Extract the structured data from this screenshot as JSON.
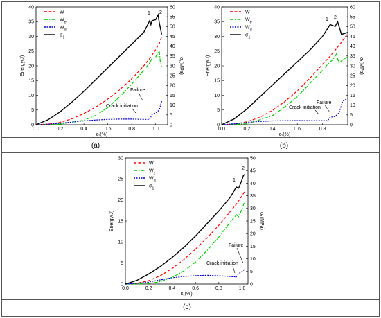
{
  "chart_data": [
    {
      "type": "line",
      "panel_label": "(a)",
      "xlabel": "ε₁(%)",
      "ylabel_left": "Energy(J)",
      "ylabel_right": "σ₁(MPa)",
      "xlim": [
        0,
        1.1
      ],
      "ylim_left": [
        0,
        40
      ],
      "ylim_right": [
        0,
        60
      ],
      "xticks": [
        "0.0",
        "0.2",
        "0.4",
        "0.6",
        "0.8",
        "1.0"
      ],
      "yticks_left": [
        "0",
        "5",
        "10",
        "15",
        "20",
        "25",
        "30",
        "35",
        "40"
      ],
      "yticks_right": [
        "0",
        "5",
        "10",
        "15",
        "20",
        "25",
        "30",
        "35",
        "40",
        "45",
        "50",
        "55",
        "60"
      ],
      "legend_placement": "top-left",
      "legend": [
        "W",
        "We",
        "Wd",
        "σ1"
      ],
      "annotations": [
        "1",
        "2",
        "Failure",
        "Crack initiation"
      ],
      "series": [
        {
          "name": "W",
          "axis": "left",
          "color": "#ff0000",
          "dash": "dashed",
          "x": [
            0,
            0.1,
            0.2,
            0.3,
            0.4,
            0.5,
            0.6,
            0.7,
            0.8,
            0.9,
            0.95,
            1.0,
            1.03,
            1.05
          ],
          "y": [
            0,
            0.2,
            0.8,
            2.0,
            3.8,
            6.0,
            8.7,
            11.9,
            15.6,
            20.0,
            22.5,
            25.5,
            27.5,
            30.0
          ]
        },
        {
          "name": "We",
          "axis": "left",
          "color": "#00cc00",
          "dash": "dashdot",
          "x": [
            0,
            0.2,
            0.4,
            0.5,
            0.6,
            0.7,
            0.8,
            0.9,
            0.95,
            0.97,
            1.0,
            1.03,
            1.04,
            1.05
          ],
          "y": [
            0,
            0.2,
            1.5,
            3.2,
            5.8,
            9.5,
            13.8,
            18.5,
            21.0,
            22.5,
            23.0,
            25.0,
            21.0,
            19.5
          ]
        },
        {
          "name": "Wd",
          "axis": "left",
          "color": "#0000cc",
          "dash": "dotted",
          "x": [
            0,
            0.1,
            0.2,
            0.3,
            0.4,
            0.5,
            0.6,
            0.7,
            0.8,
            0.9,
            0.95,
            0.97,
            1.0,
            1.03,
            1.05
          ],
          "y": [
            0,
            0.2,
            0.5,
            0.9,
            1.3,
            1.6,
            1.8,
            1.9,
            1.9,
            1.8,
            1.8,
            3.5,
            4.0,
            5.0,
            8.0
          ]
        },
        {
          "name": "σ1",
          "axis": "right",
          "color": "#000000",
          "dash": "solid",
          "x": [
            0,
            0.1,
            0.2,
            0.3,
            0.4,
            0.5,
            0.6,
            0.7,
            0.8,
            0.9,
            0.95,
            0.96,
            0.97,
            1.0,
            1.02,
            1.03,
            1.05
          ],
          "y": [
            0,
            2.5,
            6.5,
            11.5,
            17.0,
            23.0,
            29.0,
            35.0,
            41.0,
            47.0,
            53.0,
            51.0,
            53.0,
            53.5,
            56.0,
            52.0,
            46.0
          ]
        }
      ]
    },
    {
      "type": "line",
      "panel_label": "(b)",
      "xlabel": "ε₁(%)",
      "ylabel_left": "Energy(J)",
      "ylabel_right": "σ₁(MPa)",
      "xlim": [
        0,
        1.0
      ],
      "ylim_left": [
        0,
        40
      ],
      "ylim_right": [
        0,
        60
      ],
      "xticks": [
        "0.0",
        "0.2",
        "0.4",
        "0.6",
        "0.8"
      ],
      "yticks_left": [
        "0",
        "5",
        "10",
        "15",
        "20",
        "25",
        "30",
        "35",
        "40"
      ],
      "yticks_right": [
        "0",
        "5",
        "10",
        "15",
        "20",
        "25",
        "30",
        "35",
        "40",
        "45",
        "50",
        "55",
        "60"
      ],
      "legend_placement": "top-left",
      "legend": [
        "W",
        "We",
        "Wd",
        "σ1"
      ],
      "annotations": [
        "1",
        "2",
        "Failure",
        "Crack initiation"
      ],
      "series": [
        {
          "name": "W",
          "axis": "left",
          "color": "#ff0000",
          "dash": "dashed",
          "x": [
            0,
            0.1,
            0.2,
            0.3,
            0.4,
            0.5,
            0.6,
            0.7,
            0.8,
            0.85,
            0.9,
            0.95,
            1.0
          ],
          "y": [
            0,
            0.2,
            1.0,
            2.5,
            4.8,
            7.8,
            11.5,
            15.8,
            20.5,
            22.8,
            25.3,
            28.0,
            31.0
          ]
        },
        {
          "name": "We",
          "axis": "left",
          "color": "#00cc00",
          "dash": "dashdot",
          "x": [
            0,
            0.2,
            0.4,
            0.5,
            0.6,
            0.7,
            0.8,
            0.85,
            0.88,
            0.91,
            0.93,
            0.96,
            1.0
          ],
          "y": [
            0,
            0.3,
            3.0,
            6.0,
            9.5,
            14.0,
            18.5,
            21.0,
            22.0,
            24.0,
            21.0,
            22.0,
            23.0
          ]
        },
        {
          "name": "Wd",
          "axis": "left",
          "color": "#0000cc",
          "dash": "dotted",
          "x": [
            0,
            0.1,
            0.2,
            0.3,
            0.4,
            0.5,
            0.6,
            0.7,
            0.8,
            0.84,
            0.86,
            0.9,
            0.93,
            0.96,
            1.0
          ],
          "y": [
            0,
            0.3,
            0.8,
            1.1,
            1.3,
            1.4,
            1.4,
            1.4,
            1.4,
            1.4,
            2.5,
            2.8,
            4.0,
            8.0,
            9.0
          ]
        },
        {
          "name": "σ1",
          "axis": "right",
          "color": "#000000",
          "dash": "solid",
          "x": [
            0,
            0.1,
            0.2,
            0.3,
            0.4,
            0.5,
            0.6,
            0.7,
            0.8,
            0.84,
            0.86,
            0.88,
            0.9,
            0.92,
            0.95,
            1.0
          ],
          "y": [
            0,
            3.0,
            8.0,
            14.0,
            20.0,
            26.0,
            32.0,
            38.0,
            45.0,
            49.0,
            51.0,
            50.5,
            50.0,
            52.5,
            46.0,
            47.0
          ]
        }
      ]
    },
    {
      "type": "line",
      "panel_label": "(c)",
      "xlabel": "ε₁(%)",
      "ylabel_left": "Energy(J)",
      "ylabel_right": "σ₁(MPa)",
      "xlim": [
        0,
        1.05
      ],
      "ylim_left": [
        0,
        30
      ],
      "ylim_right": [
        0,
        50
      ],
      "xticks": [
        "0.0",
        "0.2",
        "0.4",
        "0.6",
        "0.8",
        "1.0"
      ],
      "yticks_left": [
        "0",
        "5",
        "10",
        "15",
        "20",
        "25",
        "30"
      ],
      "yticks_right": [
        "0",
        "5",
        "10",
        "15",
        "20",
        "25",
        "30",
        "35",
        "40",
        "45",
        "50"
      ],
      "legend_placement": "top-left",
      "legend": [
        "W",
        "We",
        "Wd",
        "σ1"
      ],
      "annotations": [
        "1",
        "2",
        "Failure",
        "Crack initiation"
      ],
      "series": [
        {
          "name": "W",
          "axis": "left",
          "color": "#ff0000",
          "dash": "dashed",
          "x": [
            0,
            0.1,
            0.2,
            0.3,
            0.4,
            0.5,
            0.6,
            0.7,
            0.8,
            0.9,
            0.95,
            1.0,
            1.02
          ],
          "y": [
            0,
            0.2,
            0.8,
            2.0,
            3.7,
            5.8,
            8.3,
            11.0,
            14.0,
            17.3,
            19.0,
            21.0,
            22.0
          ]
        },
        {
          "name": "We",
          "axis": "left",
          "color": "#00cc00",
          "dash": "dashdot",
          "x": [
            0,
            0.2,
            0.3,
            0.4,
            0.5,
            0.6,
            0.7,
            0.8,
            0.9,
            0.95,
            0.97,
            1.0,
            1.02
          ],
          "y": [
            0,
            0.1,
            0.6,
            1.6,
            3.1,
            5.2,
            8.0,
            11.2,
            14.8,
            16.5,
            16.0,
            18.0,
            19.5
          ]
        },
        {
          "name": "Wd",
          "axis": "left",
          "color": "#0000cc",
          "dash": "dotted",
          "x": [
            0,
            0.1,
            0.2,
            0.3,
            0.4,
            0.5,
            0.6,
            0.7,
            0.8,
            0.9,
            0.95,
            0.97,
            1.0,
            1.02
          ],
          "y": [
            0,
            0.2,
            0.5,
            1.0,
            1.5,
            1.8,
            2.0,
            2.1,
            2.0,
            1.8,
            1.7,
            2.5,
            3.0,
            3.5
          ]
        },
        {
          "name": "σ1",
          "axis": "right",
          "color": "#000000",
          "dash": "solid",
          "x": [
            0,
            0.1,
            0.2,
            0.3,
            0.4,
            0.5,
            0.6,
            0.7,
            0.8,
            0.9,
            0.95,
            0.97,
            1.0,
            1.01,
            1.02
          ],
          "y": [
            0,
            1.5,
            4.0,
            7.0,
            10.5,
            14.5,
            19.0,
            24.0,
            29.0,
            34.5,
            38.5,
            38.0,
            41.5,
            43.0,
            43.5
          ]
        }
      ]
    }
  ]
}
